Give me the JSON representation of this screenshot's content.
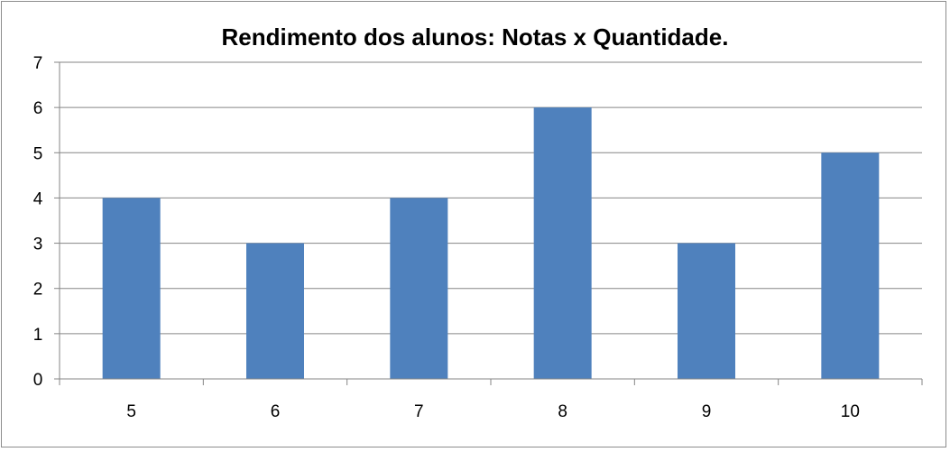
{
  "chart_data": {
    "type": "bar",
    "title": "Rendimento dos alunos: Notas x Quantidade.",
    "categories": [
      "5",
      "6",
      "7",
      "8",
      "9",
      "10"
    ],
    "values": [
      4,
      3,
      4,
      6,
      3,
      5
    ],
    "xlabel": "",
    "ylabel": "",
    "ylim": [
      0,
      7
    ],
    "yticks": [
      0,
      1,
      2,
      3,
      4,
      5,
      6,
      7
    ],
    "grid": true,
    "legend": "none",
    "bar_color": "#4F81BD"
  }
}
